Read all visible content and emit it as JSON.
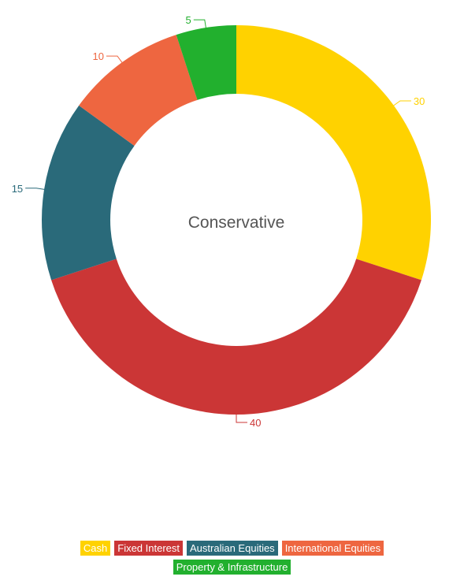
{
  "chart_data": {
    "type": "pie",
    "variant": "donut",
    "center_label": "Conservative",
    "series": [
      {
        "name": "Cash",
        "value": 30,
        "color": "#FFD200"
      },
      {
        "name": "Fixed Interest",
        "value": 40,
        "color": "#CB3636"
      },
      {
        "name": "Australian Equities",
        "value": 15,
        "color": "#2A6A7A"
      },
      {
        "name": "International Equities",
        "value": 10,
        "color": "#EE6640"
      },
      {
        "name": "Property & Infrastructure",
        "value": 5,
        "color": "#22B02E"
      }
    ],
    "data_labels": [
      "30",
      "40",
      "15",
      "10",
      "5"
    ],
    "legend_position": "bottom"
  }
}
